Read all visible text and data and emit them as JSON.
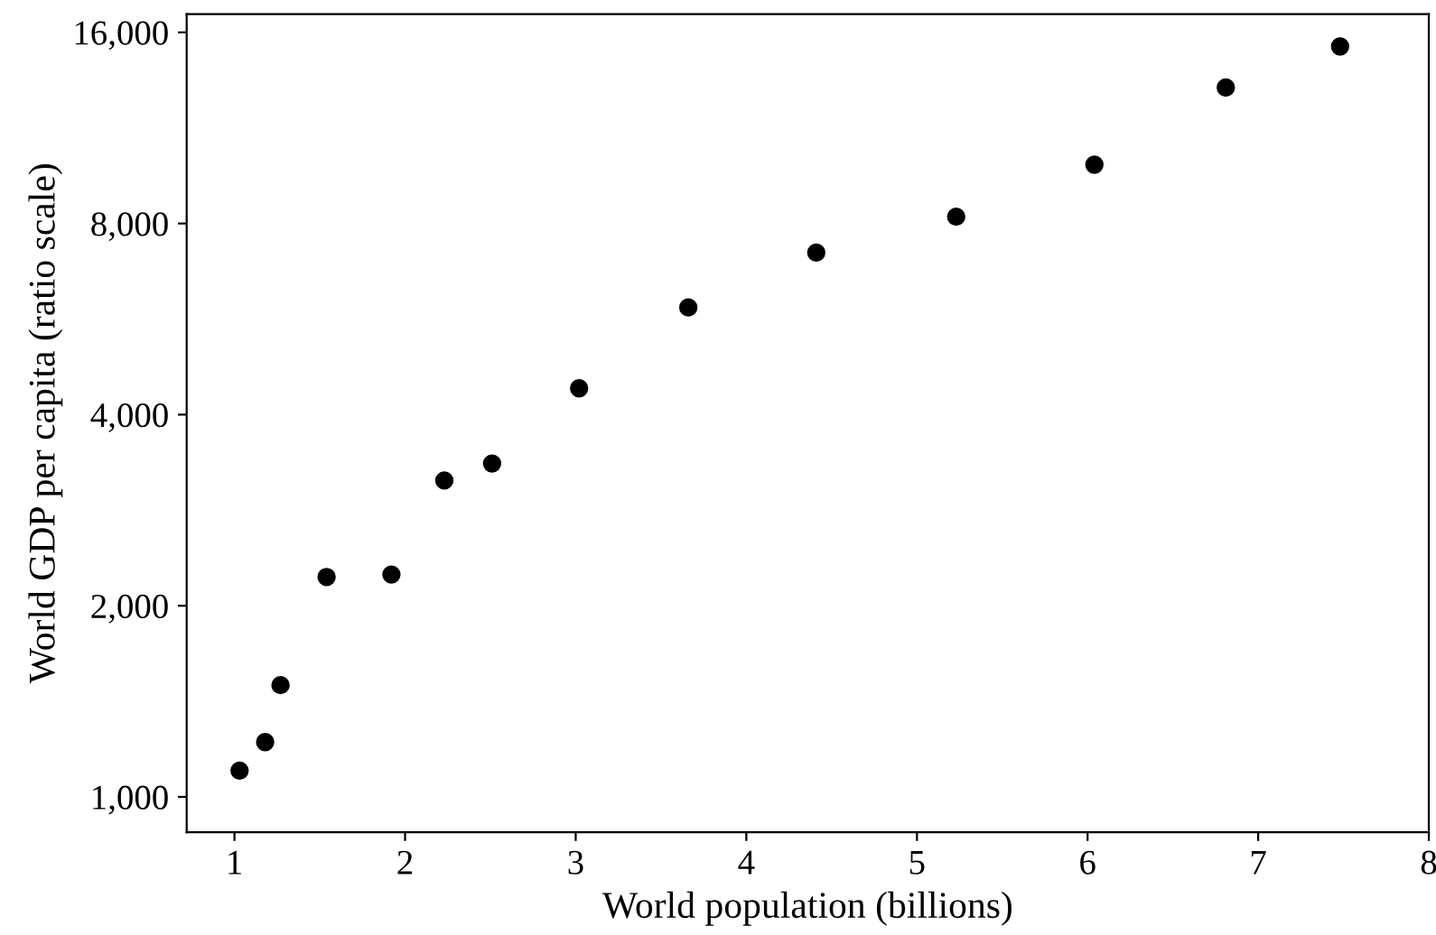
{
  "chart_data": {
    "type": "scatter",
    "xlabel": "World population (billions)",
    "ylabel": "World GDP per capita (ratio scale)",
    "x": [
      1.03,
      1.18,
      1.27,
      1.54,
      1.92,
      2.23,
      2.51,
      3.02,
      3.66,
      4.41,
      5.23,
      6.04,
      6.81,
      7.48
    ],
    "values": [
      1100,
      1220,
      1500,
      2220,
      2240,
      3150,
      3350,
      4400,
      5900,
      7200,
      8200,
      9900,
      13100,
      15200
    ],
    "color": "#000000",
    "marker": "circle",
    "log": "y",
    "xlim": [
      0.72,
      8
    ],
    "xticks": [
      1,
      2,
      3,
      4,
      5,
      6,
      7,
      8
    ],
    "ylim": [
      880,
      17100
    ],
    "yticks": [
      {
        "value": 1000,
        "label": "1,000"
      },
      {
        "value": 2000,
        "label": "2,000"
      },
      {
        "value": 4000,
        "label": "4,000"
      },
      {
        "value": 8000,
        "label": "8,000"
      },
      {
        "value": 16000,
        "label": "16,000"
      }
    ],
    "grid": false
  }
}
